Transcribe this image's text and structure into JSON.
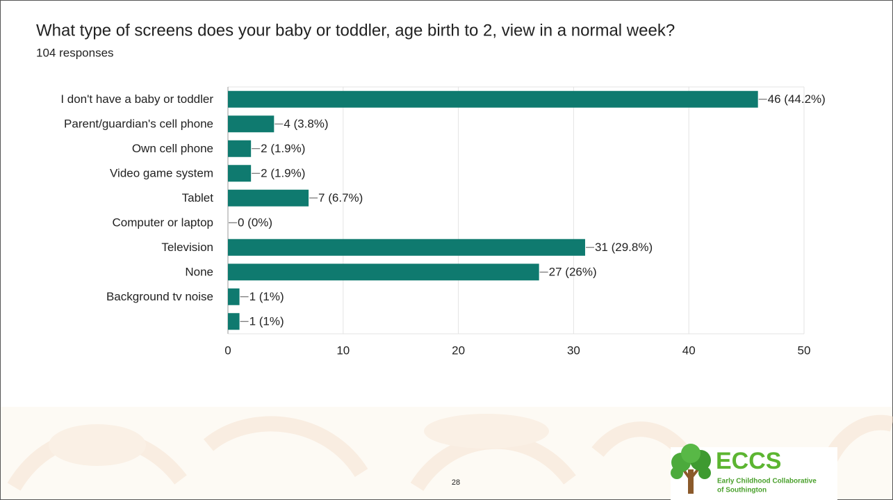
{
  "chart_data": {
    "type": "bar",
    "orientation": "horizontal",
    "title": "What type of screens does your baby or toddler, age birth to 2, view in a normal week?",
    "subtitle": "104 responses",
    "categories": [
      "I don't have a baby or toddler",
      "Parent/guardian's cell phone",
      "Own cell phone",
      "Video game system",
      "Tablet",
      "Computer or laptop",
      "Television",
      "None",
      "Background tv noise",
      null
    ],
    "values": [
      46,
      4,
      2,
      2,
      7,
      0,
      31,
      27,
      1,
      1
    ],
    "value_labels": [
      "46 (44.2%)",
      "4 (3.8%)",
      "2 (1.9%)",
      "2 (1.9%)",
      "7 (6.7%)",
      "0 (0%)",
      "31 (29.8%)",
      "27 (26%)",
      "1 (1%)",
      "1 (1%)"
    ],
    "color": "#0f7a6f",
    "xlim": [
      0,
      50
    ],
    "xticks": [
      0,
      10,
      20,
      30,
      40,
      50
    ],
    "grid": true
  },
  "slide": {
    "page_number": "28",
    "logo": {
      "acronym": "ECCS",
      "line1": "Early Childhood Collaborative",
      "line2": "of Southington"
    }
  }
}
